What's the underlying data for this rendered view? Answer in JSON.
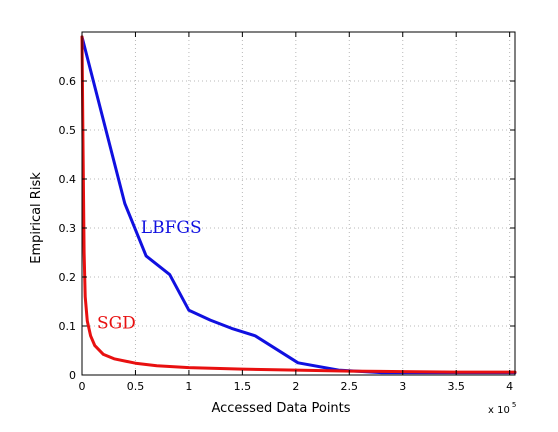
{
  "chart_data": {
    "type": "line",
    "xlabel": "Accessed Data Points",
    "ylabel": "Empirical Risk",
    "x_multiplier": "x 10",
    "x_multiplier_exp": "5",
    "xlim": [
      0,
      4.05
    ],
    "ylim": [
      0,
      0.7
    ],
    "x_ticks": [
      0,
      0.5,
      1,
      1.5,
      2,
      2.5,
      3,
      3.5,
      4
    ],
    "x_tick_labels": [
      "0",
      "0.5",
      "1",
      "1.5",
      "2",
      "2.5",
      "3",
      "3.5",
      "4"
    ],
    "y_ticks": [
      0,
      0.1,
      0.2,
      0.3,
      0.4,
      0.5,
      0.6
    ],
    "y_tick_labels": [
      "0",
      "0.1",
      "0.2",
      "0.3",
      "0.4",
      "0.5",
      "0.6"
    ],
    "grid": true,
    "series": [
      {
        "name": "LBFGS",
        "color": "#1010e0",
        "label_at": [
          0.55,
          0.29
        ],
        "x": [
          0,
          0.4,
          0.6,
          0.82,
          1.0,
          1.2,
          1.4,
          1.62,
          2.02,
          2.4,
          2.8,
          3.2,
          4.05
        ],
        "y": [
          0.69,
          0.35,
          0.243,
          0.205,
          0.132,
          0.112,
          0.095,
          0.08,
          0.025,
          0.01,
          0.005,
          0.005,
          0.005
        ]
      },
      {
        "name": "SGD",
        "color": "#e81010",
        "label_at": [
          0.14,
          0.095
        ],
        "x": [
          0,
          0.01,
          0.02,
          0.03,
          0.05,
          0.08,
          0.12,
          0.2,
          0.3,
          0.5,
          0.7,
          1.0,
          1.5,
          2.0,
          2.5,
          3.0,
          3.5,
          4.05
        ],
        "y": [
          0.69,
          0.45,
          0.25,
          0.16,
          0.11,
          0.08,
          0.06,
          0.042,
          0.033,
          0.024,
          0.019,
          0.015,
          0.012,
          0.01,
          0.008,
          0.007,
          0.006,
          0.006
        ]
      }
    ]
  }
}
